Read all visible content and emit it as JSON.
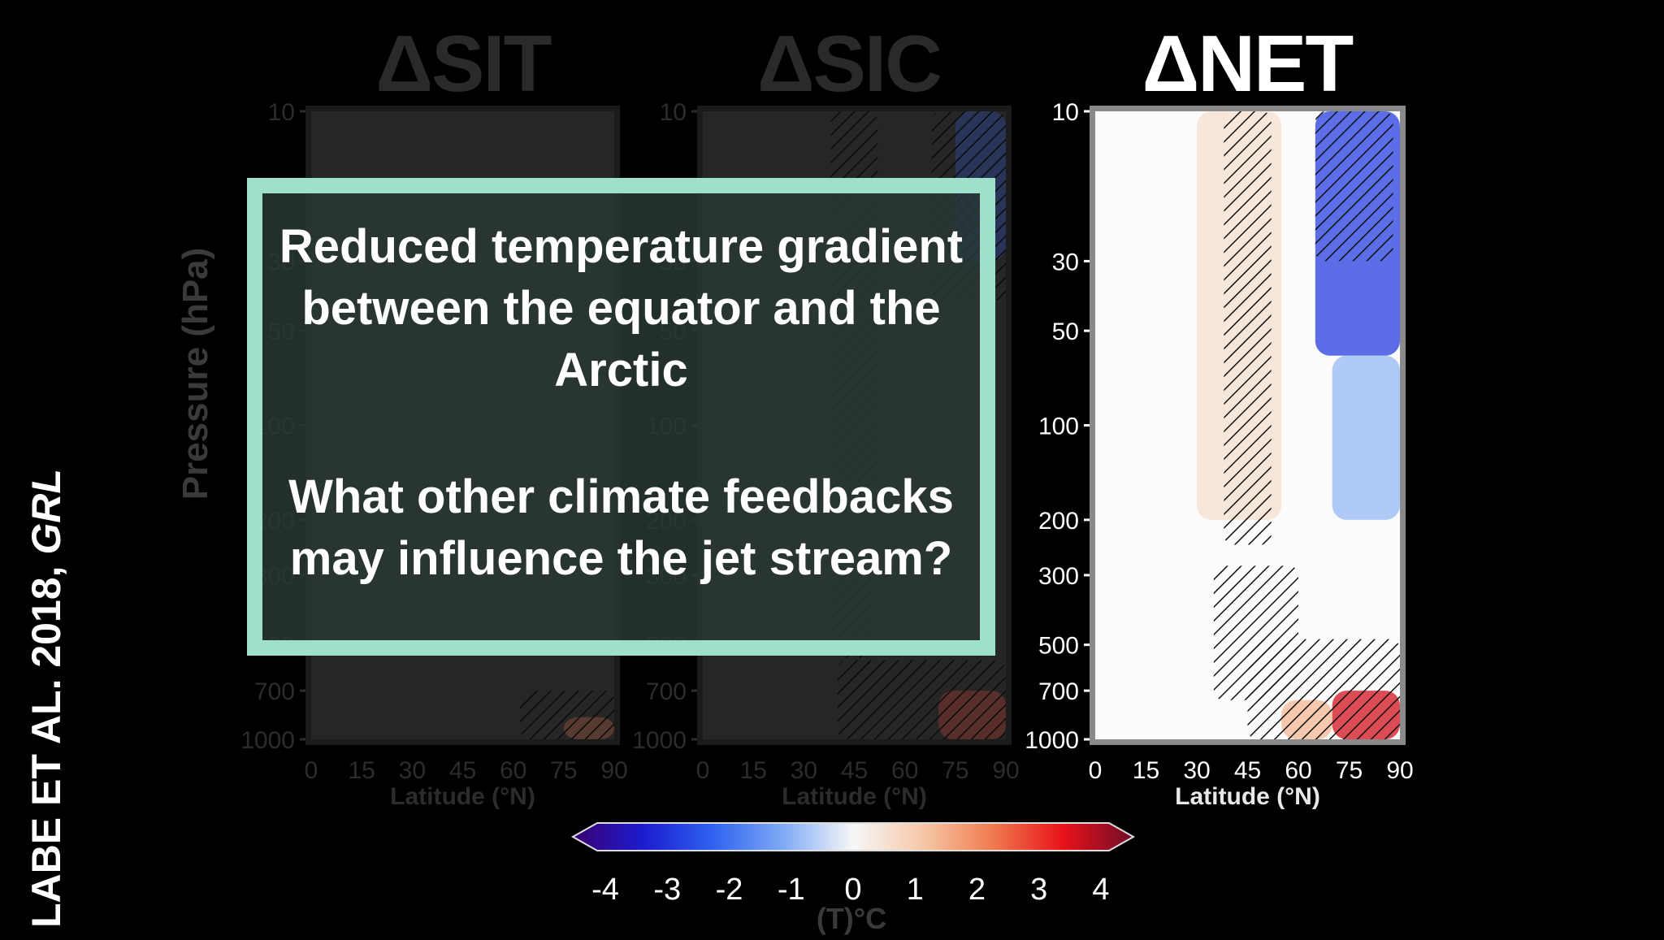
{
  "slide": {
    "side_caption_main": "LABE ET AL. 2018, ",
    "side_caption_journal": "GRL",
    "overlay_text_1": "Reduced temperature gradient between the equator and the Arctic",
    "overlay_text_2": "What other climate feedbacks may influence the jet stream?"
  },
  "colors": {
    "background": "#000000",
    "overlay_border": "#9fe0cb",
    "overlay_fill": "#283836",
    "bright_text": "#ffffff",
    "dim_text": "#2a2a2a"
  },
  "chart_data": [
    {
      "type": "heatmap",
      "title": "ΔSIT",
      "xlabel": "Latitude (°N)",
      "ylabel": "Pressure (hPa)",
      "x_ticks": [
        "0",
        "15",
        "30",
        "45",
        "60",
        "75",
        "90"
      ],
      "xlim": [
        0,
        90
      ],
      "y_ticks": [
        10,
        30,
        50,
        100,
        200,
        300,
        500,
        700,
        1000
      ],
      "y_tick_labels": [
        "10",
        "30",
        "50",
        "100",
        "200",
        "300",
        "500",
        "700",
        "1000"
      ],
      "ylim": [
        1000,
        10
      ],
      "y_scale": "log",
      "style": "dimmed",
      "description_hatch": [
        {
          "lat": [
            62,
            90
          ],
          "p": [
            1000,
            700
          ]
        }
      ],
      "anomaly_regions": [
        {
          "lat": [
            75,
            90
          ],
          "p": [
            1000,
            850
          ],
          "value": 2
        }
      ]
    },
    {
      "type": "heatmap",
      "title": "ΔSIC",
      "xlabel": "Latitude (°N)",
      "ylabel": "",
      "x_ticks": [
        "0",
        "15",
        "30",
        "45",
        "60",
        "75",
        "90"
      ],
      "xlim": [
        0,
        90
      ],
      "y_ticks": [
        10,
        30,
        50,
        100,
        200,
        300,
        500,
        700,
        1000
      ],
      "y_tick_labels": [
        "10",
        "30",
        "50",
        "100",
        "200",
        "300",
        "500",
        "700",
        "1000"
      ],
      "ylim": [
        1000,
        10
      ],
      "y_scale": "log",
      "style": "dimmed",
      "description_hatch": [
        {
          "lat": [
            38,
            52
          ],
          "p": [
            10,
            150
          ]
        },
        {
          "lat": [
            68,
            90
          ],
          "p": [
            10,
            40
          ]
        },
        {
          "lat": [
            38,
            50
          ],
          "p": [
            280,
            550
          ]
        },
        {
          "lat": [
            40,
            90
          ],
          "p": [
            1000,
            560
          ]
        }
      ],
      "anomaly_regions": [
        {
          "lat": [
            75,
            90
          ],
          "p": [
            10,
            30
          ],
          "value": -2
        },
        {
          "lat": [
            70,
            90
          ],
          "p": [
            1000,
            700
          ],
          "value": 2.5
        }
      ]
    },
    {
      "type": "heatmap",
      "title": "ΔNET",
      "xlabel": "Latitude (°N)",
      "ylabel": "",
      "x_ticks": [
        "0",
        "15",
        "30",
        "45",
        "60",
        "75",
        "90"
      ],
      "xlim": [
        0,
        90
      ],
      "y_ticks": [
        10,
        30,
        50,
        100,
        200,
        300,
        500,
        700,
        1000
      ],
      "y_tick_labels": [
        "10",
        "30",
        "50",
        "100",
        "200",
        "300",
        "500",
        "700",
        "1000"
      ],
      "ylim": [
        1000,
        10
      ],
      "y_scale": "log",
      "style": "highlighted",
      "description_hatch": [
        {
          "lat": [
            38,
            52
          ],
          "p": [
            10,
            240
          ]
        },
        {
          "lat": [
            65,
            88
          ],
          "p": [
            10,
            30
          ]
        },
        {
          "lat": [
            35,
            60
          ],
          "p": [
            280,
            750
          ]
        },
        {
          "lat": [
            45,
            90
          ],
          "p": [
            1000,
            480
          ]
        }
      ],
      "anomaly_regions": [
        {
          "lat": [
            30,
            55
          ],
          "p": [
            10,
            200
          ],
          "value": 0.5
        },
        {
          "lat": [
            65,
            90
          ],
          "p": [
            10,
            60
          ],
          "value": -2.5
        },
        {
          "lat": [
            70,
            90
          ],
          "p": [
            60,
            200
          ],
          "value": -0.8
        },
        {
          "lat": [
            70,
            90
          ],
          "p": [
            700,
            1000
          ],
          "value": 3.2
        },
        {
          "lat": [
            55,
            70
          ],
          "p": [
            750,
            1000
          ],
          "value": 1.2
        }
      ]
    },
    {
      "type": "colorbar",
      "label": "(T)°C",
      "tick_labels": [
        "-4",
        "-3",
        "-2",
        "-1",
        "0",
        "1",
        "2",
        "3",
        "4"
      ],
      "range": [
        -4,
        4
      ],
      "colors": [
        "#3a0070",
        "#1c1ccf",
        "#2f62f0",
        "#7faaf5",
        "#f7f7f7",
        "#f5c8a6",
        "#f07a4e",
        "#e8121a",
        "#6e0d28"
      ]
    }
  ]
}
